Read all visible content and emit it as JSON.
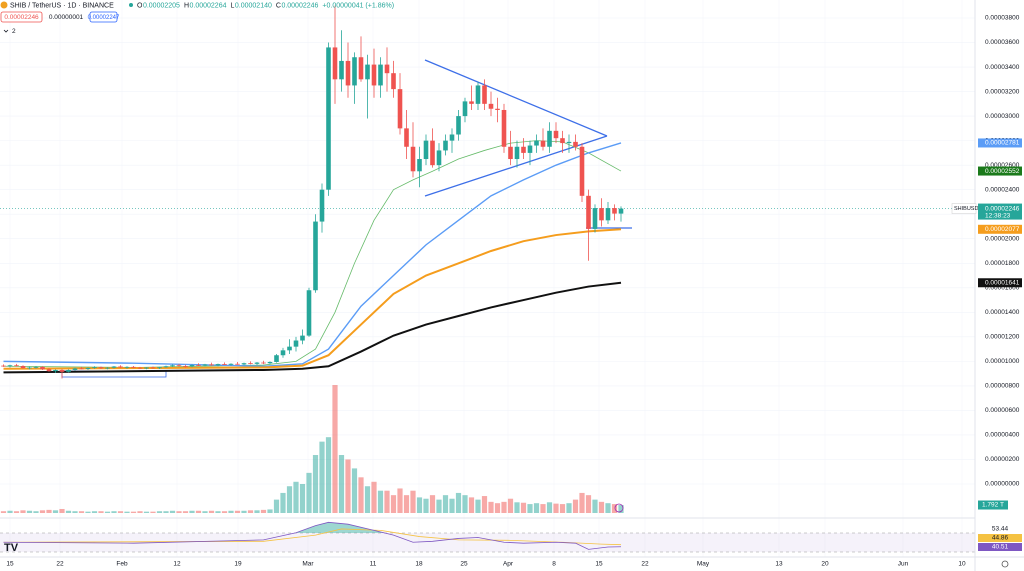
{
  "header": {
    "symbol": "SHIB / TetherUS · 1D · BINANCE",
    "ohlc": [
      "O",
      "0.00002205",
      "H",
      "0.00002264",
      "L",
      "0.00002140",
      "C",
      "0.00002246",
      "+0.00000041 (+1.86%)"
    ],
    "bid": "0.00002246",
    "spread": "0.00000001",
    "ask": "0.00002247",
    "indicators": "2"
  },
  "chart_data": {
    "type": "candlestick",
    "up_color": "#26a69a",
    "down_color": "#ef5350",
    "ylim": [
      0,
      3.8e-05
    ],
    "yticks": [
      {
        "value": 3.8e-05,
        "label": "0.00003800"
      },
      {
        "value": 3.6e-05,
        "label": "0.00003600"
      },
      {
        "value": 3.4e-05,
        "label": "0.00003400"
      },
      {
        "value": 3.2e-05,
        "label": "0.00003200"
      },
      {
        "value": 3e-05,
        "label": "0.00003000"
      },
      {
        "value": 2.8e-05,
        "label": "0.00002800"
      },
      {
        "value": 2.6e-05,
        "label": "0.00002600"
      },
      {
        "value": 2.4e-05,
        "label": "0.00002400"
      },
      {
        "value": 2.2e-05,
        "label": "0.00002200"
      },
      {
        "value": 2e-05,
        "label": "0.00002000"
      },
      {
        "value": 1.8e-05,
        "label": "0.00001800"
      },
      {
        "value": 1.6e-05,
        "label": "0.00001600"
      },
      {
        "value": 1.4e-05,
        "label": "0.00001400"
      },
      {
        "value": 1.2e-05,
        "label": "0.00001200"
      },
      {
        "value": 1e-05,
        "label": "0.00001000"
      },
      {
        "value": 8e-06,
        "label": "0.00000800"
      },
      {
        "value": 6e-06,
        "label": "0.00000600"
      },
      {
        "value": 4e-06,
        "label": "0.00000400"
      },
      {
        "value": 2e-06,
        "label": "0.00000200"
      },
      {
        "value": 0,
        "label": "0.00000000"
      }
    ],
    "x_labels": [
      "15",
      "22",
      "Feb",
      "12",
      "19",
      "Mar",
      "11",
      "18",
      "25",
      "Apr",
      "8",
      "15",
      "22",
      "May",
      "13",
      "20",
      "Jun",
      "10"
    ],
    "ohlc": [
      [
        9.65e-06,
        9.75e-06,
        9.55e-06,
        9.6e-06
      ],
      [
        9.6e-06,
        9.72e-06,
        9.5e-06,
        9.68e-06
      ],
      [
        9.68e-06,
        9.8e-06,
        9.58e-06,
        9.62e-06
      ],
      [
        9.62e-06,
        9.68e-06,
        9.4e-06,
        9.45e-06
      ],
      [
        9.45e-06,
        9.58e-06,
        9.35e-06,
        9.5e-06
      ],
      [
        9.5e-06,
        9.62e-06,
        9.42e-06,
        9.55e-06
      ],
      [
        9.55e-06,
        9.6e-06,
        9.3e-06,
        9.35e-06
      ],
      [
        9.35e-06,
        9.45e-06,
        9.15e-06,
        9.2e-06
      ],
      [
        9.2e-06,
        9.35e-06,
        9.05e-06,
        9.3e-06
      ],
      [
        9.3e-06,
        9.38e-06,
        8.6e-06,
        9.15e-06
      ],
      [
        9.15e-06,
        9.35e-06,
        9.1e-06,
        9.3e-06
      ],
      [
        9.3e-06,
        9.48e-06,
        9.25e-06,
        9.42e-06
      ],
      [
        9.42e-06,
        9.55e-06,
        9.35e-06,
        9.38e-06
      ],
      [
        9.38e-06,
        9.5e-06,
        9.3e-06,
        9.46e-06
      ],
      [
        9.46e-06,
        9.6e-06,
        9.4e-06,
        9.52e-06
      ],
      [
        9.52e-06,
        9.58e-06,
        9.38e-06,
        9.44e-06
      ],
      [
        9.44e-06,
        9.52e-06,
        9.35e-06,
        9.48e-06
      ],
      [
        9.48e-06,
        9.62e-06,
        9.42e-06,
        9.58e-06
      ],
      [
        9.58e-06,
        9.68e-06,
        9.45e-06,
        9.5e-06
      ],
      [
        9.5e-06,
        9.6e-06,
        9.4e-06,
        9.55e-06
      ],
      [
        9.55e-06,
        9.62e-06,
        9.45e-06,
        9.48e-06
      ],
      [
        9.48e-06,
        9.55e-06,
        9.38e-06,
        9.42e-06
      ],
      [
        9.42e-06,
        9.52e-06,
        9.36e-06,
        9.5e-06
      ],
      [
        9.5e-06,
        9.58e-06,
        9.4e-06,
        9.45e-06
      ],
      [
        9.45e-06,
        9.55e-06,
        9.38e-06,
        9.52e-06
      ],
      [
        9.52e-06,
        9.65e-06,
        9.48e-06,
        9.6e-06
      ],
      [
        9.6e-06,
        9.75e-06,
        9.55e-06,
        9.68e-06
      ],
      [
        9.68e-06,
        9.8e-06,
        9.58e-06,
        9.62e-06
      ],
      [
        9.62e-06,
        9.72e-06,
        9.5e-06,
        9.58e-06
      ],
      [
        9.58e-06,
        9.75e-06,
        9.52e-06,
        9.7e-06
      ],
      [
        9.7e-06,
        9.85e-06,
        9.62e-06,
        9.65e-06
      ],
      [
        9.65e-06,
        9.8e-06,
        9.58e-06,
        9.75e-06
      ],
      [
        9.75e-06,
        9.9e-06,
        9.65e-06,
        9.68e-06
      ],
      [
        9.68e-06,
        9.82e-06,
        9.6e-06,
        9.78e-06
      ],
      [
        9.78e-06,
        9.92e-06,
        9.7e-06,
        9.72e-06
      ],
      [
        9.72e-06,
        9.85e-06,
        9.65e-06,
        9.8e-06
      ],
      [
        9.8e-06,
        9.95e-06,
        9.72e-06,
        9.75e-06
      ],
      [
        9.75e-06,
        9.9e-06,
        9.68e-06,
        9.85e-06
      ],
      [
        9.85e-06,
        1e-05,
        9.75e-06,
        9.8e-06
      ],
      [
        9.8e-06,
        9.95e-06,
        9.7e-06,
        9.9e-06
      ],
      [
        9.9e-06,
        1.005e-05,
        9.78e-06,
        9.85e-06
      ],
      [
        9.85e-06,
        1e-05,
        9.75e-06,
        9.95e-06
      ],
      [
        9.95e-06,
        1.06e-05,
        9.9e-06,
        1.05e-05
      ],
      [
        1.05e-05,
        1.11e-05,
        1.03e-05,
        1.09e-05
      ],
      [
        1.09e-05,
        1.18e-05,
        1.06e-05,
        1.12e-05
      ],
      [
        1.12e-05,
        1.2e-05,
        1.08e-05,
        1.17e-05
      ],
      [
        1.17e-05,
        1.26e-05,
        1.14e-05,
        1.21e-05
      ],
      [
        1.21e-05,
        1.6e-05,
        1.2e-05,
        1.58e-05
      ],
      [
        1.58e-05,
        2.2e-05,
        1.56e-05,
        2.14e-05
      ],
      [
        2.14e-05,
        2.45e-05,
        2.05e-05,
        2.4e-05
      ],
      [
        2.4e-05,
        3.6e-05,
        2.35e-05,
        3.56e-05
      ],
      [
        3.56e-05,
        3.9e-05,
        3.1e-05,
        3.3e-05
      ],
      [
        3.3e-05,
        3.7e-05,
        3.2e-05,
        3.45e-05
      ],
      [
        3.45e-05,
        3.6e-05,
        3.15e-05,
        3.25e-05
      ],
      [
        3.25e-05,
        3.52e-05,
        3.1e-05,
        3.48e-05
      ],
      [
        3.48e-05,
        3.65e-05,
        3.28e-05,
        3.3e-05
      ],
      [
        3.3e-05,
        3.5e-05,
        2.98e-05,
        3.42e-05
      ],
      [
        3.42e-05,
        3.55e-05,
        3.15e-05,
        3.25e-05
      ],
      [
        3.25e-05,
        3.48e-05,
        3.15e-05,
        3.42e-05
      ],
      [
        3.42e-05,
        3.56e-05,
        3.2e-05,
        3.35e-05
      ],
      [
        3.35e-05,
        3.45e-05,
        3.15e-05,
        3.22e-05
      ],
      [
        3.22e-05,
        3.35e-05,
        2.85e-05,
        2.9e-05
      ],
      [
        2.9e-05,
        3.05e-05,
        2.65e-05,
        2.75e-05
      ],
      [
        2.75e-05,
        2.95e-05,
        2.5e-05,
        2.55e-05
      ],
      [
        2.55e-05,
        2.75e-05,
        2.42e-05,
        2.65e-05
      ],
      [
        2.65e-05,
        2.85e-05,
        2.6e-05,
        2.8e-05
      ],
      [
        2.8e-05,
        2.9e-05,
        2.58e-05,
        2.6e-05
      ],
      [
        2.6e-05,
        2.78e-05,
        2.55e-05,
        2.72e-05
      ],
      [
        2.72e-05,
        2.85e-05,
        2.68e-05,
        2.8e-05
      ],
      [
        2.8e-05,
        2.9e-05,
        2.7e-05,
        2.85e-05
      ],
      [
        2.85e-05,
        3.05e-05,
        2.8e-05,
        3e-05
      ],
      [
        3e-05,
        3.15e-05,
        2.95e-05,
        3.12e-05
      ],
      [
        3.12e-05,
        3.25e-05,
        3.05e-05,
        3.1e-05
      ],
      [
        3.1e-05,
        3.28e-05,
        3.05e-05,
        3.25e-05
      ],
      [
        3.25e-05,
        3.3e-05,
        3.05e-05,
        3.1e-05
      ],
      [
        3.1e-05,
        3.2e-05,
        3e-05,
        3.06e-05
      ],
      [
        3.06e-05,
        3.15e-05,
        2.95e-05,
        3.05e-05
      ],
      [
        3.05e-05,
        3.1e-05,
        2.7e-05,
        2.75e-05
      ],
      [
        2.75e-05,
        2.88e-05,
        2.6e-05,
        2.65e-05
      ],
      [
        2.65e-05,
        2.8e-05,
        2.58e-05,
        2.75e-05
      ],
      [
        2.75e-05,
        2.82e-05,
        2.65e-05,
        2.7e-05
      ],
      [
        2.7e-05,
        2.8e-05,
        2.6e-05,
        2.76e-05
      ],
      [
        2.76e-05,
        2.85e-05,
        2.7e-05,
        2.8e-05
      ],
      [
        2.8e-05,
        2.9e-05,
        2.72e-05,
        2.75e-05
      ],
      [
        2.75e-05,
        2.95e-05,
        2.7e-05,
        2.88e-05
      ],
      [
        2.88e-05,
        2.95e-05,
        2.78e-05,
        2.82e-05
      ],
      [
        2.82e-05,
        2.88e-05,
        2.7e-05,
        2.78e-05
      ],
      [
        2.78e-05,
        2.85e-05,
        2.7e-05,
        2.79e-05
      ],
      [
        2.79e-05,
        2.85e-05,
        2.72e-05,
        2.75e-05
      ],
      [
        2.75e-05,
        2.78e-05,
        2.3e-05,
        2.35e-05
      ],
      [
        2.35e-05,
        2.4e-05,
        1.82e-05,
        2.08e-05
      ],
      [
        2.08e-05,
        2.28e-05,
        2.05e-05,
        2.25e-05
      ],
      [
        2.25e-05,
        2.33e-05,
        2.1e-05,
        2.15e-05
      ],
      [
        2.15e-05,
        2.3e-05,
        2.12e-05,
        2.25e-05
      ],
      [
        2.25e-05,
        2.28e-05,
        2.15e-05,
        2.205e-05
      ],
      [
        2.205e-05,
        2.264e-05,
        2.14e-05,
        2.246e-05
      ]
    ],
    "volume": [
      0.4,
      0.5,
      0.4,
      0.6,
      0.5,
      0.4,
      0.6,
      0.7,
      0.6,
      0.9,
      0.5,
      0.4,
      0.4,
      0.3,
      0.4,
      0.4,
      0.3,
      0.4,
      0.4,
      0.3,
      0.3,
      0.4,
      0.3,
      0.3,
      0.4,
      0.4,
      0.5,
      0.4,
      0.4,
      0.5,
      0.5,
      0.4,
      0.5,
      0.4,
      0.4,
      0.5,
      0.5,
      0.5,
      0.6,
      0.6,
      0.7,
      0.8,
      3,
      4.5,
      6,
      7,
      6.5,
      9,
      13,
      16,
      17,
      28.7,
      13,
      12,
      10,
      8,
      6,
      7,
      5,
      5,
      4,
      5.5,
      4,
      5,
      3.5,
      3.2,
      4,
      3,
      4,
      3.2,
      4.5,
      4,
      3.5,
      3,
      3.8,
      2.5,
      2.2,
      2.5,
      3.2,
      2.4,
      2.3,
      2,
      2.2,
      2,
      2.4,
      2.1,
      2,
      2.2,
      3,
      4.5,
      4,
      3,
      2.5,
      2.2,
      2,
      1.792
    ],
    "volume_tag": {
      "value": 1.792,
      "label": "1.792 T"
    },
    "lines": [
      {
        "color": "#66bb6a",
        "width": 0.8,
        "x": [
          0,
          20,
          40,
          45,
          48,
          51,
          54,
          57,
          60,
          63,
          66,
          70,
          74,
          78,
          82,
          86,
          90,
          95
        ],
        "values": [
          9.6e-06,
          9.5e-06,
          9.7e-06,
          1e-05,
          1.1e-05,
          1.4e-05,
          1.8e-05,
          2.15e-05,
          2.4e-05,
          2.48e-05,
          2.55e-05,
          2.65e-05,
          2.72e-05,
          2.78e-05,
          2.8e-05,
          2.79e-05,
          2.7e-05,
          2.552e-05
        ]
      },
      {
        "color": "#5b9cf6",
        "width": 1.4,
        "x": [
          0,
          20,
          40,
          46,
          50,
          55,
          60,
          65,
          70,
          75,
          80,
          85,
          90,
          95
        ],
        "values": [
          1e-05,
          9.85e-06,
          9.6e-06,
          9.8e-06,
          1.1e-05,
          1.45e-05,
          1.7e-05,
          1.95e-05,
          2.15e-05,
          2.35e-05,
          2.48e-05,
          2.6e-05,
          2.7e-05,
          2.781e-05
        ]
      },
      {
        "color": "#f59d1d",
        "width": 2,
        "x": [
          0,
          40,
          46,
          50,
          55,
          60,
          65,
          70,
          75,
          80,
          85,
          90,
          95
        ],
        "values": [
          9.4e-06,
          9.5e-06,
          9.65e-06,
          1.05e-05,
          1.3e-05,
          1.55e-05,
          1.7e-05,
          1.8e-05,
          1.9e-05,
          1.98e-05,
          2.03e-05,
          2.06e-05,
          2.077e-05
        ]
      },
      {
        "color": "#111111",
        "width": 2,
        "x": [
          0,
          40,
          46,
          50,
          55,
          60,
          65,
          70,
          75,
          80,
          85,
          90,
          95
        ],
        "values": [
          9.1e-06,
          9.3e-06,
          9.4e-06,
          9.6e-06,
          1.08e-05,
          1.21e-05,
          1.3e-05,
          1.37e-05,
          1.44e-05,
          1.5e-05,
          1.56e-05,
          1.61e-05,
          1.641e-05
        ]
      }
    ],
    "price_tags": [
      {
        "value": 2.781e-05,
        "label": "0.00002781",
        "color": "#5b9cf6"
      },
      {
        "value": 2.552e-05,
        "label": "0.00002552",
        "color": "#1b7a1b"
      },
      {
        "value": 2.077e-05,
        "label": "0.00002077",
        "color": "#f59d1d"
      },
      {
        "value": 1.641e-05,
        "label": "0.00001641",
        "color": "#111111"
      }
    ],
    "last_price": {
      "value": 2.246e-05,
      "label": "0.00002246",
      "symbol": "SHIBUSDT",
      "countdown": "12:38:23",
      "color": "#26a69a"
    },
    "rsi": {
      "color": "#7e57c2",
      "x": [
        0,
        20,
        40,
        45,
        48,
        50,
        53,
        57,
        60,
        63,
        66,
        70,
        73,
        77,
        80,
        85,
        88,
        90,
        93,
        95
      ],
      "values": [
        50,
        48,
        55,
        70,
        85,
        92,
        88,
        75,
        65,
        50,
        52,
        58,
        60,
        50,
        48,
        50,
        48,
        35,
        40,
        40.51
      ],
      "ma_color": "#f5c242",
      "ma_x": [
        0,
        40,
        48,
        52,
        58,
        64,
        70,
        78,
        86,
        92,
        95
      ],
      "ma_values": [
        50,
        52,
        65,
        78,
        75,
        62,
        55,
        54,
        50,
        46,
        44.86
      ],
      "tags": [
        "53.44",
        "44.86",
        "40.51"
      ]
    }
  }
}
